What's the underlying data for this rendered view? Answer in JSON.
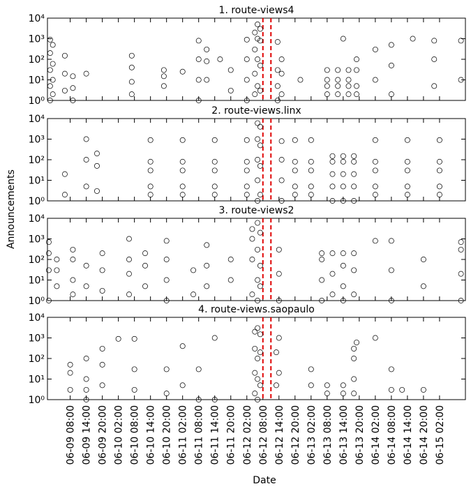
{
  "xlabel": "Date",
  "ylabel": "Announcements",
  "xlim": [
    "06-08 23:30",
    "06-15 11:40"
  ],
  "xticks": [
    "06-09 08:00",
    "06-09 14:00",
    "06-09 20:00",
    "06-10 02:00",
    "06-10 08:00",
    "06-10 14:00",
    "06-10 20:00",
    "06-11 02:00",
    "06-11 08:00",
    "06-11 14:00",
    "06-11 20:00",
    "06-12 02:00",
    "06-12 08:00",
    "06-12 14:00",
    "06-12 20:00",
    "06-13 02:00",
    "06-13 08:00",
    "06-13 14:00",
    "06-13 20:00",
    "06-14 02:00",
    "06-14 08:00",
    "06-14 14:00",
    "06-14 20:00",
    "06-15 02:00"
  ],
  "vlines": [
    "06-12 08:00",
    "06-12 11:00"
  ],
  "vline_color": "#e00000",
  "ylim": [
    1,
    10000
  ],
  "yscale": "log",
  "yticks": [
    {
      "value": 1,
      "label": "10⁰"
    },
    {
      "value": 10,
      "label": "10¹"
    },
    {
      "value": 100,
      "label": "10²"
    },
    {
      "value": 1000,
      "label": "10³"
    },
    {
      "value": 10000,
      "label": "10⁴"
    }
  ],
  "chart_data": [
    {
      "type": "scatter",
      "title": "1. route-views4",
      "color": "#000000",
      "x": [
        "06-09 00:30",
        "06-09 00:30",
        "06-09 00:30",
        "06-09 00:30",
        "06-09 00:30",
        "06-09 01:30",
        "06-09 01:30",
        "06-09 01:30",
        "06-09 01:30",
        "06-09 06:00",
        "06-09 06:00",
        "06-09 06:00",
        "06-09 09:00",
        "06-09 09:00",
        "06-09 09:00",
        "06-09 14:00",
        "06-10 07:00",
        "06-10 07:00",
        "06-10 07:00",
        "06-10 07:00",
        "06-10 19:00",
        "06-10 19:00",
        "06-10 19:00",
        "06-11 02:00",
        "06-11 08:00",
        "06-11 08:00",
        "06-11 08:00",
        "06-11 08:00",
        "06-11 11:00",
        "06-11 11:00",
        "06-11 11:00",
        "06-11 16:00",
        "06-11 20:00",
        "06-11 20:00",
        "06-12 02:00",
        "06-12 02:00",
        "06-12 02:00",
        "06-12 02:00",
        "06-12 05:00",
        "06-12 05:00",
        "06-12 05:00",
        "06-12 05:00",
        "06-12 06:00",
        "06-12 06:00",
        "06-12 06:00",
        "06-12 06:00",
        "06-12 07:00",
        "06-12 07:00",
        "06-12 07:00",
        "06-12 07:00",
        "06-12 13:30",
        "06-12 13:30",
        "06-12 13:30",
        "06-12 13:30",
        "06-12 15:00",
        "06-12 15:00",
        "06-12 15:00",
        "06-12 22:00",
        "06-13 08:00",
        "06-13 08:00",
        "06-13 08:00",
        "06-13 08:00",
        "06-13 12:00",
        "06-13 12:00",
        "06-13 12:00",
        "06-13 12:00",
        "06-13 14:00",
        "06-13 16:00",
        "06-13 16:00",
        "06-13 16:00",
        "06-13 16:00",
        "06-13 19:00",
        "06-13 19:00",
        "06-13 19:00",
        "06-13 19:00",
        "06-14 02:00",
        "06-14 02:00",
        "06-14 08:00",
        "06-14 08:00",
        "06-14 08:00",
        "06-14 16:00",
        "06-15 00:00",
        "06-15 00:00",
        "06-15 00:00",
        "06-15 10:00",
        "06-15 10:00"
      ],
      "values": [
        1,
        5,
        30,
        200,
        900,
        2,
        10,
        60,
        500,
        3,
        20,
        150,
        1,
        4,
        15,
        20,
        2,
        8,
        40,
        150,
        5,
        15,
        30,
        25,
        1,
        10,
        100,
        800,
        10,
        80,
        300,
        100,
        3,
        30,
        1,
        10,
        100,
        900,
        2,
        20,
        300,
        2000,
        5,
        100,
        1000,
        5000,
        3,
        50,
        800,
        3000,
        1,
        5,
        30,
        700,
        2,
        20,
        100,
        10,
        2,
        5,
        10,
        30,
        2,
        5,
        10,
        30,
        1000,
        2,
        5,
        10,
        30,
        2,
        5,
        30,
        100,
        10,
        300,
        2,
        50,
        500,
        1000,
        5,
        100,
        800,
        10,
        800
      ]
    },
    {
      "type": "scatter",
      "title": "2. route-views.linx",
      "color": "#000000",
      "x": [
        "06-09 06:00",
        "06-09 06:00",
        "06-09 14:00",
        "06-09 14:00",
        "06-09 14:00",
        "06-09 18:00",
        "06-09 18:00",
        "06-09 18:00",
        "06-10 14:00",
        "06-10 14:00",
        "06-10 14:00",
        "06-10 14:00",
        "06-10 14:00",
        "06-11 02:00",
        "06-11 02:00",
        "06-11 02:00",
        "06-11 02:00",
        "06-11 02:00",
        "06-11 14:00",
        "06-11 14:00",
        "06-11 14:00",
        "06-11 14:00",
        "06-11 14:00",
        "06-12 02:00",
        "06-12 02:00",
        "06-12 02:00",
        "06-12 02:00",
        "06-12 02:00",
        "06-12 06:00",
        "06-12 06:00",
        "06-12 06:00",
        "06-12 06:00",
        "06-12 06:00",
        "06-12 07:00",
        "06-12 07:00",
        "06-12 07:00",
        "06-12 07:00",
        "06-12 15:00",
        "06-12 15:00",
        "06-12 15:00",
        "06-12 15:00",
        "06-12 20:00",
        "06-12 20:00",
        "06-12 20:00",
        "06-12 20:00",
        "06-12 20:00",
        "06-13 02:00",
        "06-13 02:00",
        "06-13 02:00",
        "06-13 02:00",
        "06-13 02:00",
        "06-13 10:00",
        "06-13 10:00",
        "06-13 10:00",
        "06-13 10:00",
        "06-13 10:00",
        "06-13 14:00",
        "06-13 14:00",
        "06-13 14:00",
        "06-13 14:00",
        "06-13 14:00",
        "06-13 18:00",
        "06-13 18:00",
        "06-13 18:00",
        "06-13 18:00",
        "06-13 18:00",
        "06-14 02:00",
        "06-14 02:00",
        "06-14 02:00",
        "06-14 02:00",
        "06-14 02:00",
        "06-14 14:00",
        "06-14 14:00",
        "06-14 14:00",
        "06-14 14:00",
        "06-14 14:00",
        "06-15 02:00",
        "06-15 02:00",
        "06-15 02:00",
        "06-15 02:00",
        "06-15 02:00"
      ],
      "values": [
        2,
        20,
        5,
        100,
        1000,
        3,
        50,
        200,
        900,
        80,
        30,
        5,
        2,
        900,
        80,
        30,
        5,
        2,
        900,
        80,
        30,
        5,
        2,
        900,
        80,
        30,
        5,
        2,
        1,
        10,
        100,
        1000,
        6000,
        2,
        50,
        500,
        4000,
        1,
        10,
        100,
        800,
        900,
        80,
        30,
        5,
        2,
        900,
        80,
        30,
        5,
        2,
        1,
        5,
        20,
        80,
        150,
        1,
        5,
        20,
        80,
        150,
        1,
        5,
        20,
        80,
        150,
        900,
        80,
        30,
        5,
        2,
        900,
        80,
        30,
        5,
        2,
        900,
        80,
        30,
        5,
        2
      ]
    },
    {
      "type": "scatter",
      "title": "3. route-views2",
      "color": "#000000",
      "x": [
        "06-09 00:00",
        "06-09 00:00",
        "06-09 00:00",
        "06-09 00:00",
        "06-09 03:00",
        "06-09 03:00",
        "06-09 03:00",
        "06-09 09:00",
        "06-09 09:00",
        "06-09 09:00",
        "06-09 09:00",
        "06-09 14:00",
        "06-09 14:00",
        "06-09 20:00",
        "06-09 20:00",
        "06-09 20:00",
        "06-10 06:00",
        "06-10 06:00",
        "06-10 06:00",
        "06-10 06:00",
        "06-10 12:00",
        "06-10 12:00",
        "06-10 12:00",
        "06-10 20:00",
        "06-10 20:00",
        "06-10 20:00",
        "06-10 20:00",
        "06-11 06:00",
        "06-11 06:00",
        "06-11 11:00",
        "06-11 11:00",
        "06-11 11:00",
        "06-11 20:00",
        "06-11 20:00",
        "06-12 04:00",
        "06-12 04:00",
        "06-12 04:00",
        "06-12 04:00",
        "06-12 06:00",
        "06-12 06:00",
        "06-12 06:00",
        "06-12 06:00",
        "06-12 07:00",
        "06-12 07:00",
        "06-12 07:00",
        "06-12 14:00",
        "06-12 14:00",
        "06-12 14:00",
        "06-13 06:00",
        "06-13 06:00",
        "06-13 06:00",
        "06-13 06:00",
        "06-13 10:00",
        "06-13 10:00",
        "06-13 10:00",
        "06-13 14:00",
        "06-13 14:00",
        "06-13 14:00",
        "06-13 14:00",
        "06-13 18:00",
        "06-13 18:00",
        "06-13 18:00",
        "06-14 02:00",
        "06-14 08:00",
        "06-14 08:00",
        "06-14 08:00",
        "06-14 20:00",
        "06-14 20:00",
        "06-15 10:00",
        "06-15 10:00",
        "06-15 10:00",
        "06-15 10:00"
      ],
      "values": [
        1,
        30,
        200,
        700,
        5,
        30,
        100,
        2,
        10,
        100,
        300,
        5,
        50,
        3,
        30,
        200,
        2,
        20,
        100,
        1000,
        5,
        50,
        200,
        1,
        10,
        100,
        800,
        2,
        30,
        5,
        50,
        500,
        10,
        100,
        2,
        100,
        1000,
        3000,
        1,
        10,
        300,
        6000,
        5,
        50,
        2000,
        1,
        20,
        300,
        1,
        10,
        100,
        200,
        2,
        20,
        200,
        1,
        5,
        50,
        200,
        2,
        30,
        200,
        800,
        1,
        30,
        800,
        5,
        100,
        1,
        20,
        300,
        700
      ]
    },
    {
      "type": "scatter",
      "title": "4. route-views.saopaulo",
      "color": "#000000",
      "x": [
        "06-09 08:00",
        "06-09 08:00",
        "06-09 08:00",
        "06-09 14:00",
        "06-09 14:00",
        "06-09 14:00",
        "06-09 14:00",
        "06-09 20:00",
        "06-09 20:00",
        "06-09 20:00",
        "06-10 02:00",
        "06-10 08:00",
        "06-10 08:00",
        "06-10 08:00",
        "06-10 20:00",
        "06-10 20:00",
        "06-11 02:00",
        "06-11 02:00",
        "06-11 08:00",
        "06-11 08:00",
        "06-11 14:00",
        "06-11 14:00",
        "06-12 05:00",
        "06-12 05:00",
        "06-12 05:00",
        "06-12 05:00",
        "06-12 06:00",
        "06-12 06:00",
        "06-12 06:00",
        "06-12 06:00",
        "06-12 07:00",
        "06-12 07:00",
        "06-12 07:00",
        "06-12 13:00",
        "06-12 13:00",
        "06-12 14:00",
        "06-12 14:00",
        "06-13 02:00",
        "06-13 02:00",
        "06-13 08:00",
        "06-13 08:00",
        "06-13 14:00",
        "06-13 14:00",
        "06-13 18:00",
        "06-13 18:00",
        "06-13 18:00",
        "06-13 18:00",
        "06-13 19:00",
        "06-14 02:00",
        "06-14 08:00",
        "06-14 08:00",
        "06-14 12:00",
        "06-14 20:00"
      ],
      "values": [
        3,
        20,
        50,
        1,
        3,
        10,
        100,
        5,
        50,
        300,
        900,
        3,
        30,
        900,
        2,
        30,
        5,
        400,
        1,
        30,
        1,
        1000,
        2,
        20,
        300,
        2000,
        1,
        10,
        100,
        3000,
        5,
        200,
        1500,
        5,
        200,
        20,
        1000,
        5,
        30,
        2,
        5,
        2,
        5,
        2,
        10,
        100,
        300,
        600,
        1000,
        3,
        30,
        3,
        3
      ]
    }
  ]
}
